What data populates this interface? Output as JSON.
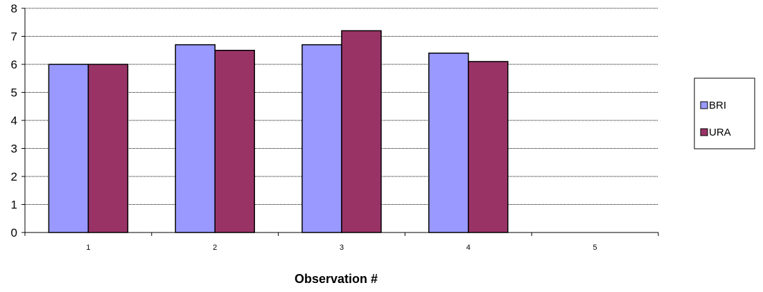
{
  "chart_data": {
    "type": "bar",
    "categories": [
      "1",
      "2",
      "3",
      "4",
      "5"
    ],
    "series": [
      {
        "name": "BRI",
        "values": [
          6.0,
          6.7,
          6.7,
          6.4,
          null
        ],
        "color": "#9999ff"
      },
      {
        "name": "URA",
        "values": [
          6.0,
          6.5,
          7.2,
          6.1,
          null
        ],
        "color": "#993366"
      }
    ],
    "title": "",
    "xlabel": "Observation #",
    "ylabel": "",
    "ylim": [
      0,
      8
    ],
    "yticks": [
      "0",
      "1",
      "2",
      "3",
      "4",
      "5",
      "6",
      "7",
      "8"
    ],
    "grid": true,
    "legend_position": "right"
  }
}
